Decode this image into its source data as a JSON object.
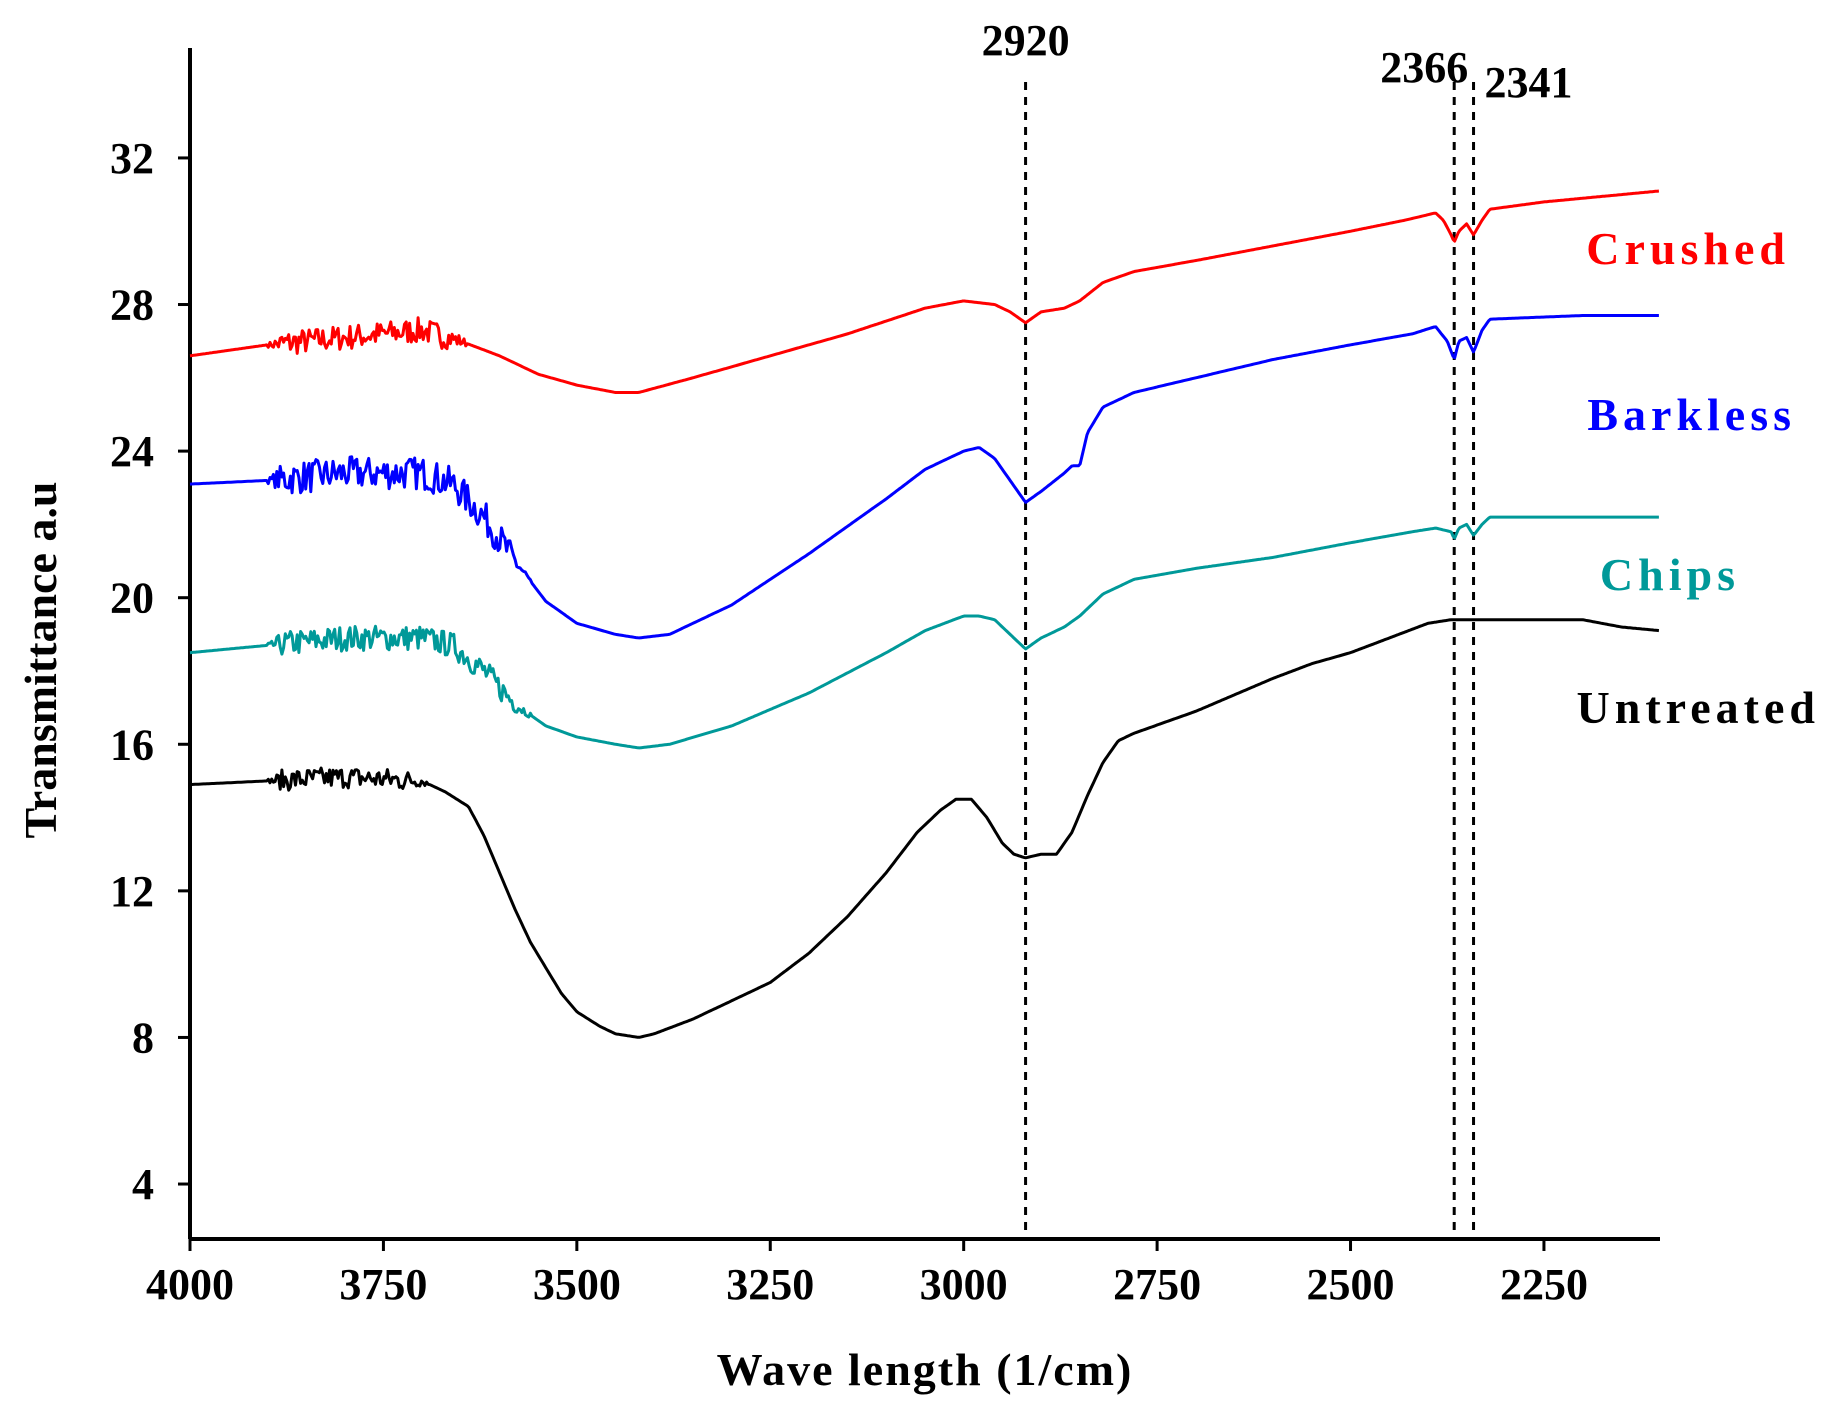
{
  "chart_data": {
    "type": "line",
    "title": "",
    "xlabel": "Wave length (1/cm)",
    "ylabel": "Transmittance a.u",
    "xlim": [
      4000,
      2100
    ],
    "ylim": [
      2.5,
      35
    ],
    "x_ticks": [
      4000,
      3750,
      3500,
      3250,
      3000,
      2750,
      2500,
      2250
    ],
    "x_tick_labels": [
      "4000",
      "3750",
      "3500",
      "3250",
      "3000",
      "2750",
      "2500",
      "2250"
    ],
    "y_ticks": [
      4,
      8,
      12,
      16,
      20,
      24,
      28,
      32
    ],
    "y_tick_labels": [
      "4",
      "8",
      "12",
      "16",
      "20",
      "24",
      "28",
      "32"
    ],
    "grid": false,
    "legend_placement": "right, beside each curve",
    "reference_lines": [
      {
        "x": 2920,
        "label": "2920"
      },
      {
        "x": 2366,
        "label": "2366"
      },
      {
        "x": 2341,
        "label": "2341"
      }
    ],
    "series": [
      {
        "name": "Crushed",
        "color": "#ff0000",
        "noise_range": [
          3900,
          3640
        ],
        "noise_amplitude": 0.35,
        "x": [
          4000,
          3900,
          3800,
          3700,
          3650,
          3600,
          3550,
          3500,
          3450,
          3420,
          3350,
          3250,
          3150,
          3050,
          3000,
          2960,
          2940,
          2920,
          2900,
          2870,
          2850,
          2820,
          2780,
          2700,
          2600,
          2500,
          2430,
          2390,
          2380,
          2370,
          2366,
          2360,
          2350,
          2341,
          2330,
          2320,
          2250,
          2200,
          2100
        ],
        "y": [
          26.6,
          26.9,
          27.1,
          27.3,
          27.0,
          26.6,
          26.1,
          25.8,
          25.6,
          25.6,
          26.0,
          26.6,
          27.2,
          27.9,
          28.1,
          28.0,
          27.8,
          27.5,
          27.8,
          27.9,
          28.1,
          28.6,
          28.9,
          29.2,
          29.6,
          30.0,
          30.3,
          30.5,
          30.3,
          29.9,
          29.7,
          30.0,
          30.2,
          29.9,
          30.3,
          30.6,
          30.8,
          30.9,
          31.1
        ]
      },
      {
        "name": "Barkless",
        "color": "#0000ff",
        "noise_range": [
          3900,
          3560
        ],
        "noise_amplitude": 0.45,
        "x": [
          4000,
          3900,
          3800,
          3700,
          3660,
          3620,
          3580,
          3540,
          3500,
          3450,
          3420,
          3380,
          3300,
          3200,
          3100,
          3050,
          3000,
          2980,
          2960,
          2940,
          2920,
          2900,
          2870,
          2860,
          2850,
          2840,
          2820,
          2780,
          2700,
          2600,
          2500,
          2420,
          2390,
          2375,
          2366,
          2360,
          2350,
          2341,
          2330,
          2320,
          2200,
          2100
        ],
        "y": [
          23.1,
          23.2,
          23.4,
          23.4,
          23.1,
          22.2,
          21.0,
          19.9,
          19.3,
          19.0,
          18.9,
          19.0,
          19.8,
          21.2,
          22.7,
          23.5,
          24.0,
          24.1,
          23.8,
          23.2,
          22.6,
          22.9,
          23.4,
          23.6,
          23.6,
          24.5,
          25.2,
          25.6,
          26.0,
          26.5,
          26.9,
          27.2,
          27.4,
          27.0,
          26.5,
          27.0,
          27.1,
          26.7,
          27.3,
          27.6,
          27.7,
          27.7
        ]
      },
      {
        "name": "Chips",
        "color": "#009999",
        "noise_range": [
          3900,
          3560
        ],
        "noise_amplitude": 0.35,
        "x": [
          4000,
          3900,
          3800,
          3700,
          3660,
          3620,
          3580,
          3540,
          3500,
          3450,
          3420,
          3380,
          3300,
          3200,
          3100,
          3050,
          3000,
          2980,
          2960,
          2940,
          2920,
          2900,
          2870,
          2850,
          2820,
          2780,
          2700,
          2600,
          2500,
          2420,
          2390,
          2370,
          2366,
          2360,
          2350,
          2341,
          2330,
          2320,
          2200,
          2100
        ],
        "y": [
          18.5,
          18.7,
          18.9,
          18.9,
          18.7,
          18.0,
          17.1,
          16.5,
          16.2,
          16.0,
          15.9,
          16.0,
          16.5,
          17.4,
          18.5,
          19.1,
          19.5,
          19.5,
          19.4,
          19.0,
          18.6,
          18.9,
          19.2,
          19.5,
          20.1,
          20.5,
          20.8,
          21.1,
          21.5,
          21.8,
          21.9,
          21.8,
          21.6,
          21.9,
          22.0,
          21.7,
          22.0,
          22.2,
          22.2,
          22.2
        ]
      },
      {
        "name": "Untreated",
        "color": "#000000",
        "noise_range": [
          3900,
          3690
        ],
        "noise_amplitude": 0.3,
        "x": [
          4000,
          3900,
          3800,
          3700,
          3670,
          3640,
          3620,
          3600,
          3580,
          3560,
          3540,
          3520,
          3500,
          3470,
          3450,
          3420,
          3400,
          3350,
          3300,
          3250,
          3200,
          3150,
          3100,
          3060,
          3030,
          3010,
          2990,
          2970,
          2950,
          2935,
          2920,
          2900,
          2880,
          2860,
          2840,
          2820,
          2800,
          2780,
          2700,
          2600,
          2550,
          2500,
          2450,
          2400,
          2370,
          2340,
          2300,
          2250,
          2200,
          2150,
          2100
        ],
        "y": [
          14.9,
          15.0,
          15.1,
          15.0,
          14.7,
          14.3,
          13.5,
          12.5,
          11.5,
          10.6,
          9.9,
          9.2,
          8.7,
          8.3,
          8.1,
          8.0,
          8.1,
          8.5,
          9.0,
          9.5,
          10.3,
          11.3,
          12.5,
          13.6,
          14.2,
          14.5,
          14.5,
          14.0,
          13.3,
          13.0,
          12.9,
          13.0,
          13.0,
          13.6,
          14.6,
          15.5,
          16.1,
          16.3,
          16.9,
          17.8,
          18.2,
          18.5,
          18.9,
          19.3,
          19.4,
          19.4,
          19.4,
          19.4,
          19.4,
          19.2,
          19.1
        ]
      }
    ]
  }
}
